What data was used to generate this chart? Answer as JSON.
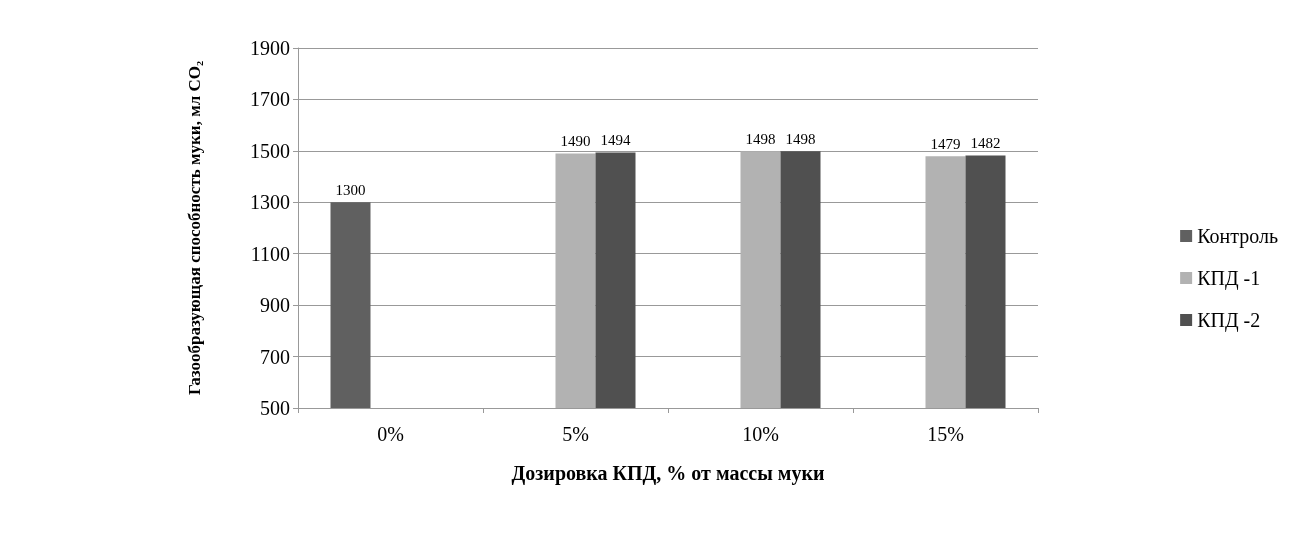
{
  "chart_data": {
    "type": "bar",
    "xlabel": "Дозировка КПД, % от массы муки",
    "ylabel": "Газообразующая способность муки, мл CO₂",
    "categories": [
      "0%",
      "5%",
      "10%",
      "15%"
    ],
    "series": [
      {
        "name": "Контроль",
        "color": "#606060",
        "values": [
          1300,
          null,
          null,
          null
        ]
      },
      {
        "name": "КПД -1",
        "color": "#b2b2b2",
        "values": [
          null,
          1490,
          1498,
          1479
        ]
      },
      {
        "name": "КПД -2",
        "color": "#505050",
        "values": [
          null,
          1494,
          1498,
          1482
        ]
      }
    ],
    "ylim": [
      500,
      1900
    ],
    "yticks": [
      500,
      700,
      900,
      1100,
      1300,
      1500,
      1700,
      1900
    ],
    "grid": "y",
    "legend": "right",
    "data_labels": true
  }
}
